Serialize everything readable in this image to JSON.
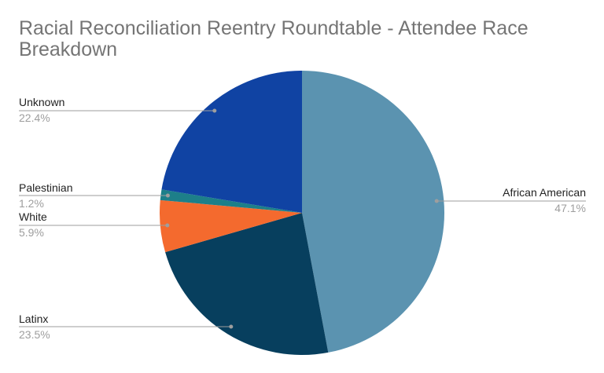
{
  "chart_data": {
    "type": "pie",
    "title": "Racial Reconciliation Reentry Roundtable - Attendee Race Breakdown",
    "title_lines": [
      "Racial Reconciliation Reentry Roundtable - Attendee Race",
      "Breakdown"
    ],
    "start_angle_deg": 0,
    "direction": "clockwise",
    "legend": "none",
    "slices": [
      {
        "label": "African American",
        "value": 47.1,
        "pct_label": "47.1%",
        "color": "#5b93b0"
      },
      {
        "label": "Latinx",
        "value": 23.5,
        "pct_label": "23.5%",
        "color": "#073f5e"
      },
      {
        "label": "White",
        "value": 5.9,
        "pct_label": "5.9%",
        "color": "#f46a2e"
      },
      {
        "label": "Palestinian",
        "value": 1.2,
        "pct_label": "1.2%",
        "color": "#1d7f89"
      },
      {
        "label": "Unknown",
        "value": 22.4,
        "pct_label": "22.4%",
        "color": "#1043a3"
      }
    ]
  }
}
